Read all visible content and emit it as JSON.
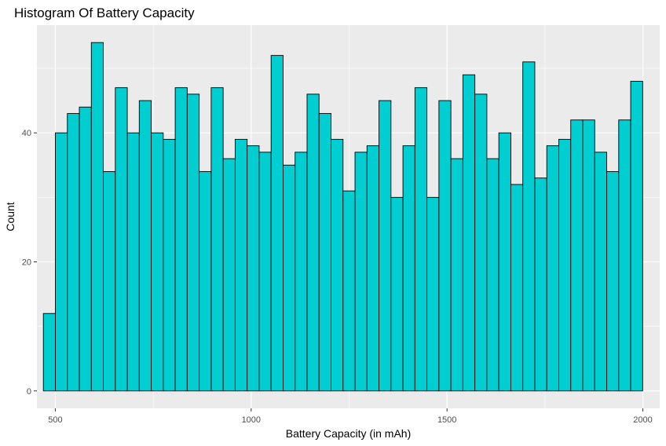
{
  "chart_data": {
    "type": "bar",
    "title": "Histogram Of Battery Capacity",
    "xlabel": "Battery Capacity (in mAh)",
    "ylabel": "Count",
    "xlim": [
      453,
      2043
    ],
    "ylim": [
      -2.7,
      56.7
    ],
    "xticks": [
      500,
      1000,
      1500,
      2000
    ],
    "xtick_labels": [
      "500",
      "1000",
      "1500",
      "2000"
    ],
    "yticks": [
      0,
      20,
      40
    ],
    "ytick_labels": [
      "0",
      "20",
      "40"
    ],
    "bin_start": 469.5,
    "bin_width": 30.6,
    "values": [
      12,
      40,
      43,
      44,
      54,
      34,
      47,
      40,
      45,
      40,
      39,
      47,
      46,
      34,
      47,
      36,
      39,
      38,
      37,
      52,
      35,
      37,
      46,
      43,
      39,
      31,
      37,
      38,
      45,
      30,
      38,
      47,
      30,
      45,
      36,
      49,
      46,
      36,
      40,
      32,
      51,
      33,
      38,
      39,
      42,
      42,
      37,
      34,
      42,
      48
    ],
    "bar_fill": "#00ced1",
    "bar_stroke": "#000000",
    "panel_background": "#ebebeb",
    "grid": true,
    "grid_color": "#ffffff"
  }
}
